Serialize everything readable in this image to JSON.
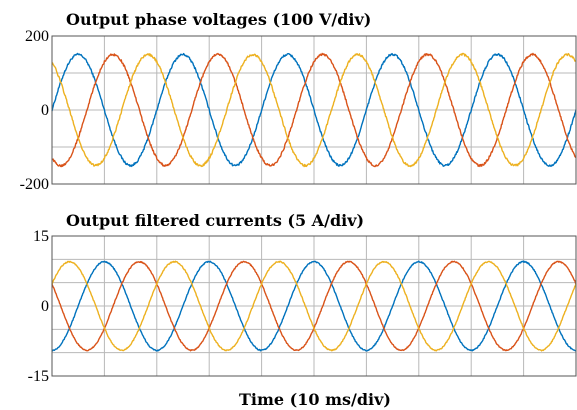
{
  "chart_data": [
    {
      "type": "line",
      "title": "Output phase voltages (100 V/div)",
      "ylim": [
        -200,
        200
      ],
      "yticks": [
        {
          "value": 200,
          "label": "200"
        },
        {
          "value": 0,
          "label": "0"
        },
        {
          "value": -200,
          "label": "-200"
        }
      ],
      "h_grid_values": [
        -200,
        -100,
        0,
        100,
        200
      ],
      "x_divisions": 10,
      "x_range_ms": [
        0,
        100
      ],
      "frequency_hz": 50,
      "amplitude": 150,
      "series": [
        {
          "color": "#0072BD",
          "phase_deg": 0,
          "amplitude": 150
        },
        {
          "color": "#D95319",
          "phase_deg": 240,
          "amplitude": 150
        },
        {
          "color": "#EDB120",
          "phase_deg": 120,
          "amplitude": 150
        }
      ]
    },
    {
      "type": "line",
      "title": "Output filtered currents (5 A/div)",
      "ylim": [
        -15,
        15
      ],
      "yticks": [
        {
          "value": 15,
          "label": "15"
        },
        {
          "value": 0,
          "label": "0"
        },
        {
          "value": -15,
          "label": "-15"
        }
      ],
      "h_grid_values": [
        -15,
        -10,
        -5,
        0,
        5,
        10,
        15
      ],
      "x_divisions": 10,
      "x_range_ms": [
        0,
        100
      ],
      "frequency_hz": 50,
      "amplitude": 9.5,
      "series": [
        {
          "color": "#0072BD",
          "phase_deg": -90,
          "amplitude": 9.5
        },
        {
          "color": "#D95319",
          "phase_deg": 150,
          "amplitude": 9.5
        },
        {
          "color": "#EDB120",
          "phase_deg": 30,
          "amplitude": 9.5
        }
      ]
    }
  ],
  "xlabel": "Time (10 ms/div)"
}
